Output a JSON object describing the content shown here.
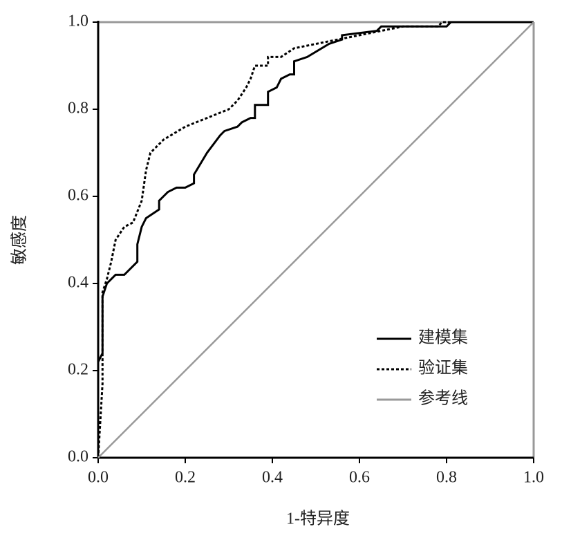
{
  "chart_data": {
    "type": "line",
    "xlabel": "1-特异度",
    "ylabel": "敏感度",
    "xlim": [
      0,
      1
    ],
    "ylim": [
      0,
      1
    ],
    "xticks": [
      {
        "value": 0,
        "label": "0.0"
      },
      0.2,
      0.4,
      0.6,
      0.8,
      {
        "value": 1,
        "label": "1.0"
      }
    ],
    "yticks": [
      {
        "value": 0,
        "label": "0.0"
      },
      0.2,
      0.4,
      0.6,
      0.8,
      {
        "value": 1,
        "label": "1.0"
      }
    ],
    "legend": "lower right",
    "series": [
      {
        "name": "建模集",
        "color": "#000000",
        "style": "solid",
        "x": [
          0,
          0,
          0.01,
          0.01,
          0.02,
          0.03,
          0.04,
          0.06,
          0.09,
          0.09,
          0.1,
          0.11,
          0.14,
          0.14,
          0.15,
          0.16,
          0.18,
          0.2,
          0.22,
          0.22,
          0.25,
          0.28,
          0.29,
          0.32,
          0.33,
          0.35,
          0.36,
          0.36,
          0.39,
          0.39,
          0.41,
          0.42,
          0.44,
          0.45,
          0.45,
          0.48,
          0.53,
          0.56,
          0.56,
          0.64,
          0.65,
          0.8,
          0.81,
          1
        ],
        "values": [
          0,
          0.22,
          0.24,
          0.37,
          0.4,
          0.41,
          0.42,
          0.42,
          0.45,
          0.49,
          0.53,
          0.55,
          0.57,
          0.59,
          0.6,
          0.61,
          0.62,
          0.62,
          0.63,
          0.65,
          0.7,
          0.74,
          0.75,
          0.76,
          0.77,
          0.78,
          0.78,
          0.81,
          0.81,
          0.84,
          0.85,
          0.87,
          0.88,
          0.88,
          0.91,
          0.92,
          0.95,
          0.96,
          0.97,
          0.98,
          0.99,
          0.99,
          1,
          1
        ]
      },
      {
        "name": "验证集",
        "color": "#000000",
        "style": "dotted",
        "x": [
          0,
          0.01,
          0.01,
          0.02,
          0.03,
          0.04,
          0.06,
          0.08,
          0.1,
          0.11,
          0.12,
          0.15,
          0.2,
          0.25,
          0.3,
          0.32,
          0.34,
          0.35,
          0.36,
          0.39,
          0.39,
          0.42,
          0.45,
          0.5,
          0.55,
          0.6,
          0.65,
          0.7,
          0.78,
          0.79,
          1
        ],
        "values": [
          0,
          0.17,
          0.38,
          0.41,
          0.45,
          0.5,
          0.53,
          0.54,
          0.59,
          0.66,
          0.7,
          0.73,
          0.76,
          0.78,
          0.8,
          0.82,
          0.85,
          0.87,
          0.9,
          0.9,
          0.92,
          0.92,
          0.94,
          0.95,
          0.96,
          0.97,
          0.98,
          0.99,
          0.99,
          1,
          1
        ]
      },
      {
        "name": "参考线",
        "color": "#999999",
        "style": "solid",
        "x": [
          0,
          1
        ],
        "values": [
          0,
          1
        ]
      }
    ]
  }
}
